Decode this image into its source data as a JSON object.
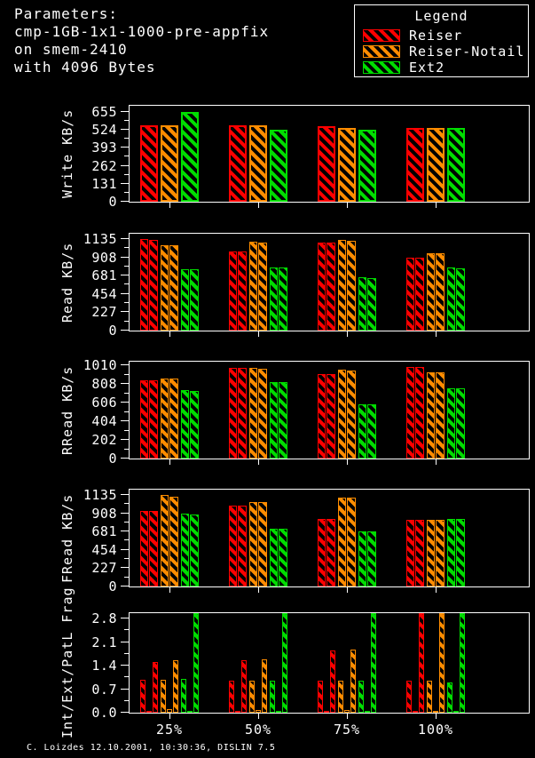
{
  "header": {
    "lines": [
      "Parameters:",
      "cmp-1GB-1x1-1000-pre-appfix",
      "on smem-2410",
      "with 4096 Bytes"
    ]
  },
  "legend": {
    "title": "Legend",
    "items": [
      {
        "label": "Reiser",
        "color": "#ff0000"
      },
      {
        "label": "Reiser-Notail",
        "color": "#ff8c00"
      },
      {
        "label": "Ext2",
        "color": "#00dd00"
      }
    ]
  },
  "footer": {
    "text": "C. Loizdes 12.10.2001, 10:30:36, DISLIN 7.5"
  },
  "chart_data": [
    {
      "type": "bar",
      "ylabel": "Write KB/s",
      "categories": [
        "25%",
        "50%",
        "75%",
        "100%"
      ],
      "yticks": [
        0,
        131,
        262,
        393,
        524,
        655
      ],
      "ytick_labels": [
        "0",
        "131",
        "262",
        "393",
        "524",
        "655"
      ],
      "ylim": [
        0,
        700
      ],
      "bars_per_series": 1,
      "show_xlabels": false,
      "series": [
        {
          "name": "Reiser",
          "color": "#ff0000",
          "values": [
            [
              560
            ],
            [
              555
            ],
            [
              550
            ],
            [
              540
            ]
          ]
        },
        {
          "name": "Reiser-Notail",
          "color": "#ff8c00",
          "values": [
            [
              556
            ],
            [
              556
            ],
            [
              540
            ],
            [
              537
            ]
          ]
        },
        {
          "name": "Ext2",
          "color": "#00dd00",
          "values": [
            [
              655
            ],
            [
              522
            ],
            [
              525
            ],
            [
              537
            ]
          ]
        }
      ]
    },
    {
      "type": "bar",
      "ylabel": "Read KB/s",
      "categories": [
        "25%",
        "50%",
        "75%",
        "100%"
      ],
      "yticks": [
        0,
        227,
        454,
        681,
        908,
        1135
      ],
      "ytick_labels": [
        "0",
        "227",
        "454",
        "681",
        "908",
        "1135"
      ],
      "ylim": [
        0,
        1200
      ],
      "bars_per_series": 2,
      "show_xlabels": false,
      "series": [
        {
          "name": "Reiser",
          "color": "#ff0000",
          "values": [
            [
              1135,
              1125
            ],
            [
              975,
              975
            ],
            [
              1095,
              1090
            ],
            [
              905,
              900
            ]
          ]
        },
        {
          "name": "Reiser-Notail",
          "color": "#ff8c00",
          "values": [
            [
              1060,
              1055
            ],
            [
              1100,
              1090
            ],
            [
              1120,
              1115
            ],
            [
              960,
              955
            ]
          ]
        },
        {
          "name": "Ext2",
          "color": "#00dd00",
          "values": [
            [
              760,
              760
            ],
            [
              780,
              780
            ],
            [
              660,
              655
            ],
            [
              780,
              775
            ]
          ]
        }
      ]
    },
    {
      "type": "bar",
      "ylabel": "RRead KB/s",
      "categories": [
        "25%",
        "50%",
        "75%",
        "100%"
      ],
      "yticks": [
        0,
        202,
        404,
        606,
        808,
        1010
      ],
      "ytick_labels": [
        "0",
        "202",
        "404",
        "606",
        "808",
        "1010"
      ],
      "ylim": [
        0,
        1050
      ],
      "bars_per_series": 2,
      "show_xlabels": false,
      "series": [
        {
          "name": "Reiser",
          "color": "#ff0000",
          "values": [
            [
              845,
              845
            ],
            [
              985,
              985
            ],
            [
              915,
              915
            ],
            [
              995,
              995
            ]
          ]
        },
        {
          "name": "Reiser-Notail",
          "color": "#ff8c00",
          "values": [
            [
              870,
              865
            ],
            [
              985,
              975
            ],
            [
              960,
              955
            ],
            [
              935,
              930
            ]
          ]
        },
        {
          "name": "Ext2",
          "color": "#00dd00",
          "values": [
            [
              737,
              728
            ],
            [
              825,
              825
            ],
            [
              585,
              585
            ],
            [
              765,
              760
            ]
          ]
        }
      ]
    },
    {
      "type": "bar",
      "ylabel": "FRead KB/s",
      "categories": [
        "25%",
        "50%",
        "75%",
        "100%"
      ],
      "yticks": [
        0,
        227,
        454,
        681,
        908,
        1135
      ],
      "ytick_labels": [
        "0",
        "227",
        "454",
        "681",
        "908",
        "1135"
      ],
      "ylim": [
        0,
        1200
      ],
      "bars_per_series": 2,
      "show_xlabels": false,
      "series": [
        {
          "name": "Reiser",
          "color": "#ff0000",
          "values": [
            [
              940,
              940
            ],
            [
              1000,
              1000
            ],
            [
              835,
              835
            ],
            [
              825,
              825
            ]
          ]
        },
        {
          "name": "Reiser-Notail",
          "color": "#ff8c00",
          "values": [
            [
              1135,
              1110
            ],
            [
              1045,
              1045
            ],
            [
              1100,
              1105
            ],
            [
              830,
              830
            ]
          ]
        },
        {
          "name": "Ext2",
          "color": "#00dd00",
          "values": [
            [
              905,
              895
            ],
            [
              720,
              715
            ],
            [
              685,
              680
            ],
            [
              835,
              835
            ]
          ]
        }
      ]
    },
    {
      "type": "bar",
      "ylabel": "Int/Ext/PatL Frag",
      "categories": [
        "25%",
        "50%",
        "75%",
        "100%"
      ],
      "yticks": [
        0,
        0.7,
        1.4,
        2.1,
        2.8
      ],
      "ytick_labels": [
        "0.0",
        "0.7",
        "1.4",
        "2.1",
        "2.8"
      ],
      "ylim": [
        0,
        2.96
      ],
      "bars_per_series": 3,
      "bar_labels": [
        "Int",
        "Ext",
        "PatL"
      ],
      "show_xlabels": true,
      "series": [
        {
          "name": "Reiser",
          "color": "#ff0000",
          "values": [
            [
              0.97,
              0.06,
              1.51
            ],
            [
              0.95,
              0.05,
              1.57
            ],
            [
              0.95,
              0.05,
              1.86
            ],
            [
              0.95,
              0.05,
              2.95
            ]
          ]
        },
        {
          "name": "Reiser-Notail",
          "color": "#ff8c00",
          "values": [
            [
              0.97,
              0.1,
              1.55
            ],
            [
              0.96,
              0.08,
              1.58
            ],
            [
              0.95,
              0.08,
              1.88
            ],
            [
              0.95,
              0.05,
              2.95
            ]
          ]
        },
        {
          "name": "Ext2",
          "color": "#00dd00",
          "values": [
            [
              1.0,
              0.03,
              2.95
            ],
            [
              0.95,
              0.03,
              2.95
            ],
            [
              0.95,
              0.03,
              2.95
            ],
            [
              0.9,
              0.03,
              2.95
            ]
          ]
        }
      ]
    }
  ]
}
